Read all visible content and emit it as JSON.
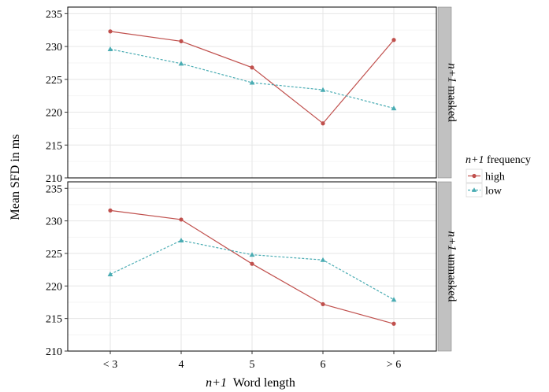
{
  "chart_data": {
    "type": "line",
    "categories": [
      "< 3",
      "4",
      "5",
      "6",
      "> 6"
    ],
    "ylabel": "Mean SFD in ms",
    "xlabel": {
      "italic": "n+1",
      "rest": "Word length"
    },
    "ylim": [
      210,
      236
    ],
    "yticks": [
      "210",
      "215",
      "220",
      "225",
      "230",
      "235"
    ],
    "grid": true,
    "legend": {
      "placement": "right",
      "title_italic": "n+1",
      "title_rest": "frequency",
      "entries": [
        "high",
        "low"
      ]
    },
    "series_styles": {
      "high": {
        "color": "#c0504d",
        "line": "solid",
        "marker": "circle"
      },
      "low": {
        "color": "#4aacb3",
        "line": "dashed",
        "marker": "triangle"
      }
    },
    "panels": [
      {
        "strip_italic": "n+1",
        "strip_rest": "masked",
        "series": [
          {
            "name": "high",
            "values": [
              232.3,
              230.8,
              226.8,
              218.3,
              231.0
            ]
          },
          {
            "name": "low",
            "values": [
              229.6,
              227.4,
              224.5,
              223.4,
              220.6
            ]
          }
        ]
      },
      {
        "strip_italic": "n+1",
        "strip_rest": "unmasked",
        "series": [
          {
            "name": "high",
            "values": [
              231.6,
              230.2,
              223.4,
              217.2,
              214.2
            ]
          },
          {
            "name": "low",
            "values": [
              221.8,
              227.0,
              224.8,
              224.0,
              217.9
            ]
          }
        ]
      }
    ]
  }
}
